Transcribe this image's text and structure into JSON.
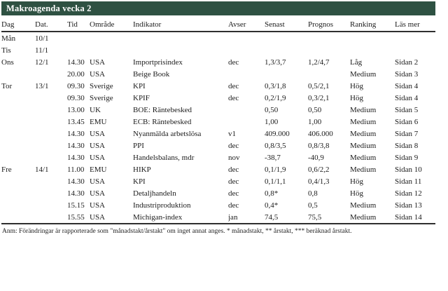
{
  "title": "Makroagenda vecka 2",
  "colors": {
    "title_bg": "#2e5142",
    "rule": "#2f2f2f",
    "text": "#1b1b1b"
  },
  "columns": [
    {
      "key": "dag",
      "label": "Dag"
    },
    {
      "key": "dat",
      "label": "Dat."
    },
    {
      "key": "tid",
      "label": "Tid"
    },
    {
      "key": "omrade",
      "label": "Område"
    },
    {
      "key": "indikator",
      "label": "Indikator"
    },
    {
      "key": "avser",
      "label": "Avser"
    },
    {
      "key": "senast",
      "label": "Senast"
    },
    {
      "key": "prognos",
      "label": "Prognos"
    },
    {
      "key": "ranking",
      "label": "Ranking"
    },
    {
      "key": "lasmer",
      "label": "Läs mer"
    }
  ],
  "rows": [
    {
      "dag": "Mån",
      "dat": "10/1",
      "tid": "",
      "omrade": "",
      "indikator": "",
      "avser": "",
      "senast": "",
      "prognos": "",
      "ranking": "",
      "lasmer": ""
    },
    {
      "dag": "Tis",
      "dat": "11/1",
      "tid": "",
      "omrade": "",
      "indikator": "",
      "avser": "",
      "senast": "",
      "prognos": "",
      "ranking": "",
      "lasmer": ""
    },
    {
      "dag": "Ons",
      "dat": "12/1",
      "tid": "14.30",
      "omrade": "USA",
      "indikator": "Importprisindex",
      "avser": "dec",
      "senast": "1,3/3,7",
      "prognos": "1,2/4,7",
      "ranking": "Låg",
      "lasmer": "Sidan 2"
    },
    {
      "dag": "",
      "dat": "",
      "tid": "20.00",
      "omrade": "USA",
      "indikator": "Beige Book",
      "avser": "",
      "senast": "",
      "prognos": "",
      "ranking": "Medium",
      "lasmer": "Sidan 3"
    },
    {
      "dag": "Tor",
      "dat": "13/1",
      "tid": "09.30",
      "omrade": "Sverige",
      "indikator": "KPI",
      "avser": "dec",
      "senast": "0,3/1,8",
      "prognos": "0,5/2,1",
      "ranking": "Hög",
      "lasmer": "Sidan 4"
    },
    {
      "dag": "",
      "dat": "",
      "tid": "09.30",
      "omrade": "Sverige",
      "indikator": "KPIF",
      "avser": "dec",
      "senast": "0,2/1,9",
      "prognos": "0,3/2,1",
      "ranking": "Hög",
      "lasmer": "Sidan 4"
    },
    {
      "dag": "",
      "dat": "",
      "tid": "13.00",
      "omrade": "UK",
      "indikator": "BOE: Räntebesked",
      "avser": "",
      "senast": "0,50",
      "prognos": "0,50",
      "ranking": "Medium",
      "lasmer": "Sidan 5"
    },
    {
      "dag": "",
      "dat": "",
      "tid": "13.45",
      "omrade": "EMU",
      "indikator": "ECB: Räntebesked",
      "avser": "",
      "senast": "1,00",
      "prognos": "1,00",
      "ranking": "Medium",
      "lasmer": "Sidan 6"
    },
    {
      "dag": "",
      "dat": "",
      "tid": "14.30",
      "omrade": "USA",
      "indikator": "Nyanmälda arbetslösa",
      "avser": "v1",
      "senast": "409.000",
      "prognos": "406.000",
      "ranking": "Medium",
      "lasmer": "Sidan 7"
    },
    {
      "dag": "",
      "dat": "",
      "tid": "14.30",
      "omrade": "USA",
      "indikator": "PPI",
      "avser": "dec",
      "senast": "0,8/3,5",
      "prognos": "0,8/3,8",
      "ranking": "Medium",
      "lasmer": "Sidan 8"
    },
    {
      "dag": "",
      "dat": "",
      "tid": "14.30",
      "omrade": "USA",
      "indikator": "Handelsbalans, mdr",
      "avser": "nov",
      "senast": "-38,7",
      "prognos": "-40,9",
      "ranking": "Medium",
      "lasmer": "Sidan 9"
    },
    {
      "dag": "Fre",
      "dat": "14/1",
      "tid": "11.00",
      "omrade": "EMU",
      "indikator": "HIKP",
      "avser": "dec",
      "senast": "0,1/1,9",
      "prognos": "0,6/2,2",
      "ranking": "Medium",
      "lasmer": "Sidan 10"
    },
    {
      "dag": "",
      "dat": "",
      "tid": "14.30",
      "omrade": "USA",
      "indikator": "KPI",
      "avser": "dec",
      "senast": "0,1/1,1",
      "prognos": "0,4/1,3",
      "ranking": "Hög",
      "lasmer": "Sidan 11"
    },
    {
      "dag": "",
      "dat": "",
      "tid": "14.30",
      "omrade": "USA",
      "indikator": "Detaljhandeln",
      "avser": "dec",
      "senast": "0,8*",
      "prognos": "0,8",
      "ranking": "Hög",
      "lasmer": "Sidan 12"
    },
    {
      "dag": "",
      "dat": "",
      "tid": "15.15",
      "omrade": "USA",
      "indikator": "Industriproduktion",
      "avser": "dec",
      "senast": "0,4*",
      "prognos": "0,5",
      "ranking": "Medium",
      "lasmer": "Sidan 13"
    },
    {
      "dag": "",
      "dat": "",
      "tid": "15.55",
      "omrade": "USA",
      "indikator": "Michigan-index",
      "avser": "jan",
      "senast": "74,5",
      "prognos": "75,5",
      "ranking": "Medium",
      "lasmer": "Sidan 14"
    }
  ],
  "footnote": "Anm: Förändringar är rapporterade som \"månadstakt/årstakt\" om inget annat anges. * månadstakt, ** årstakt, *** beräknad årstakt."
}
